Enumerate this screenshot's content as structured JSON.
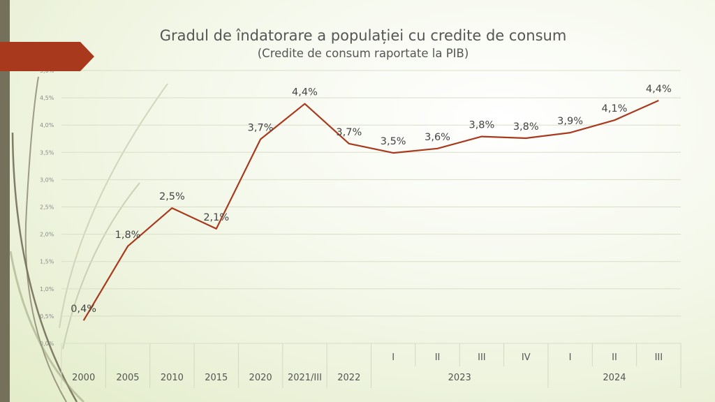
{
  "chart_data": {
    "type": "line",
    "title": "Gradul de îndatorare a populației cu credite de consum",
    "subtitle": "(Credite de consum raportate la PIB)",
    "xlabel": "",
    "ylabel": "",
    "ylim": [
      0,
      5
    ],
    "y_ticks": [
      "0,0%",
      "0,5%",
      "1,0%",
      "1,5%",
      "2,0%",
      "2,5%",
      "3,0%",
      "3,5%",
      "4,0%",
      "4,5%",
      "5,0%"
    ],
    "categories": [
      "2000",
      "2005",
      "2010",
      "2015",
      "2020",
      "2021/III",
      "2022",
      "I",
      "II",
      "III",
      "IV",
      "I",
      "II",
      "III"
    ],
    "category_groups": [
      {
        "label": "2023",
        "start": 7,
        "end": 10
      },
      {
        "label": "2024",
        "start": 11,
        "end": 13
      }
    ],
    "series": [
      {
        "values": [
          0.42,
          1.78,
          2.48,
          2.1,
          3.74,
          4.39,
          3.66,
          3.49,
          3.57,
          3.79,
          3.76,
          3.86,
          4.09,
          4.45
        ],
        "labels": [
          "0,4%",
          "1,8%",
          "2,5%",
          "2,1%",
          "3,7%",
          "4,4%",
          "3,7%",
          "3,5%",
          "3,6%",
          "3,8%",
          "3,8%",
          "3,9%",
          "4,1%",
          "4,4%"
        ],
        "color": "#a8391d"
      }
    ],
    "grid": true,
    "legend": "none"
  },
  "colors": {
    "accent": "#a8391d",
    "left_bar": "#75705a",
    "background": "#eef3de"
  }
}
